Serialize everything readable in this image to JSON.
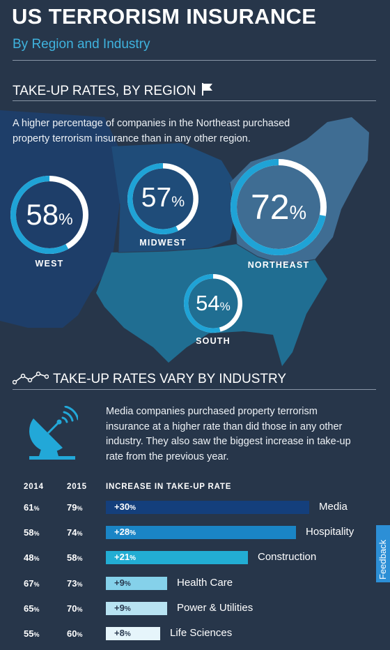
{
  "header": {
    "title": "US TERRORISM INSURANCE",
    "subtitle": "By Region and Industry"
  },
  "region_section": {
    "title": "TAKE-UP RATES, BY REGION",
    "intro": "A higher percentage of companies in the Northeast purchased property terrorism insurance than in any other region."
  },
  "industry_section": {
    "title": "TAKE-UP RATES VARY BY INDUSTRY",
    "text": "Media companies purchased property terrorism insurance at a higher rate than did those in any other industry. They also saw the biggest increase in take-up rate from the previous year.",
    "col_2014": "2014",
    "col_2015": "2015",
    "col_increase": "INCREASE IN TAKE-UP RATE"
  },
  "chart_data": [
    {
      "type": "pie",
      "categories": [
        "WEST",
        "MIDWEST",
        "NORTHEAST",
        "SOUTH"
      ],
      "values": [
        58,
        57,
        72,
        54
      ],
      "unit": "%"
    },
    {
      "type": "bar",
      "categories": [
        "Media",
        "Hospitality",
        "Construction",
        "Health Care",
        "Power & Utilities",
        "Life Sciences"
      ],
      "series": [
        {
          "name": "2014",
          "values": [
            61,
            58,
            48,
            67,
            65,
            55
          ]
        },
        {
          "name": "2015",
          "values": [
            79,
            74,
            58,
            73,
            70,
            60
          ]
        },
        {
          "name": "INCREASE IN TAKE-UP RATE",
          "values": [
            30,
            28,
            21,
            9,
            9,
            8
          ]
        }
      ],
      "bar_colors": [
        "#143f7c",
        "#1a85c6",
        "#22add3",
        "#85d1ea",
        "#b8e3f2",
        "#e6f5fb"
      ],
      "unit": "%"
    }
  ],
  "colors": {
    "accent": "#3fb3de",
    "ring_fill": "#1fa3d6",
    "ring_track": "#ffffff"
  },
  "icons": [
    "flag-icon",
    "line-chart-icon",
    "satellite-dish-icon"
  ],
  "feedback_label": "Feedback"
}
